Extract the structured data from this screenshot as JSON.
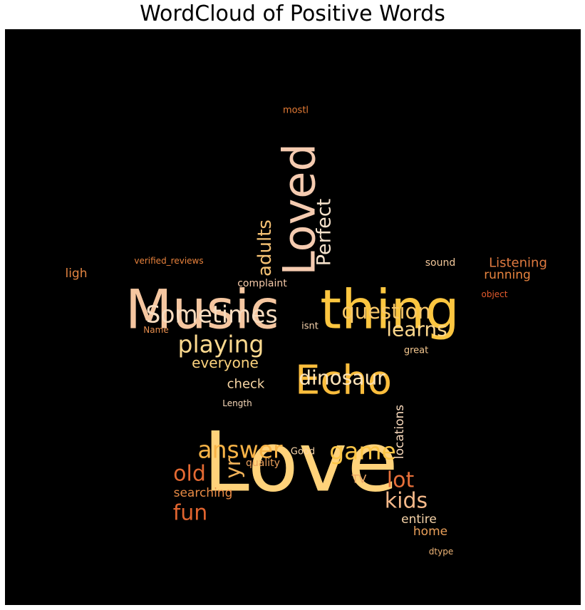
{
  "chart_data": {
    "type": "wordcloud",
    "title": "WordCloud of Positive Words",
    "background": "#000000",
    "words": [
      {
        "text": "Love",
        "color": "#ffd27a"
      },
      {
        "text": "Music",
        "color": "#f5c6a0"
      },
      {
        "text": "thing",
        "color": "#fcc640"
      },
      {
        "text": "Echo",
        "color": "#fbbd3c"
      },
      {
        "text": "Loved",
        "color": "#f5cbb0"
      },
      {
        "text": "Sometimes",
        "color": "#f7dcc0"
      },
      {
        "text": "playing",
        "color": "#fcd98f"
      },
      {
        "text": "question",
        "color": "#f9c86a"
      },
      {
        "text": "answer",
        "color": "#f7b347"
      },
      {
        "text": "game",
        "color": "#fbc547"
      },
      {
        "text": "dinosaur",
        "color": "#fde3b8"
      },
      {
        "text": "learns",
        "color": "#fcd78c"
      },
      {
        "text": "Perfect",
        "color": "#f7e3cc"
      },
      {
        "text": "adults",
        "color": "#f6c274"
      },
      {
        "text": "kids",
        "color": "#f5b98a"
      },
      {
        "text": "lot",
        "color": "#e8703a"
      },
      {
        "text": "old",
        "color": "#e46a33"
      },
      {
        "text": "fun",
        "color": "#e0642f"
      },
      {
        "text": "yr",
        "color": "#f2b35a"
      },
      {
        "text": "everyone",
        "color": "#fbd27d"
      },
      {
        "text": "locations",
        "color": "#f8d9bc"
      },
      {
        "text": "Listening",
        "color": "#e07a40"
      },
      {
        "text": "running",
        "color": "#e8843f"
      },
      {
        "text": "check",
        "color": "#fad8a6"
      },
      {
        "text": "searching",
        "color": "#e88b45"
      },
      {
        "text": "entire",
        "color": "#f6d3a8"
      },
      {
        "text": "home",
        "color": "#eaa05a"
      },
      {
        "text": "complaint",
        "color": "#f5c9a8"
      },
      {
        "text": "ligh",
        "color": "#e48542"
      },
      {
        "text": "sound",
        "color": "#f2c79a"
      },
      {
        "text": "TV",
        "color": "#eea867"
      },
      {
        "text": "quality",
        "color": "#eaa05c"
      },
      {
        "text": "great",
        "color": "#f5c890"
      },
      {
        "text": "isnt",
        "color": "#f7d4ae"
      },
      {
        "text": "Good",
        "color": "#f8d5a8"
      },
      {
        "text": "Name",
        "color": "#e78e4e"
      },
      {
        "text": "Length",
        "color": "#f8d9ba"
      },
      {
        "text": "mostl",
        "color": "#e67c36"
      },
      {
        "text": "verified_reviews",
        "color": "#e8823c"
      },
      {
        "text": "object",
        "color": "#e45a2d"
      },
      {
        "text": "dtype",
        "color": "#eeb577"
      }
    ]
  }
}
